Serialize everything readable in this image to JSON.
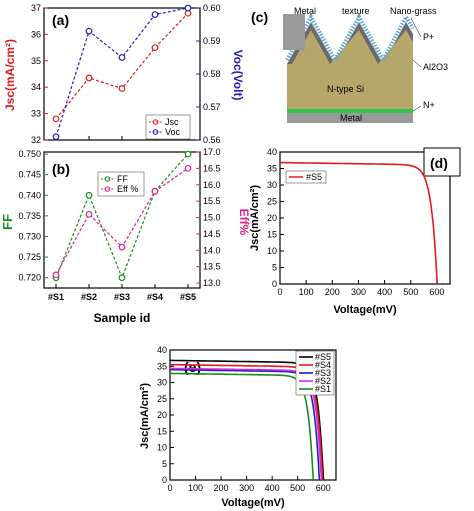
{
  "chart_data": [
    {
      "panel": "(a)",
      "type": "line",
      "categories": [
        "#S1",
        "#S2",
        "#S3",
        "#S4",
        "#S5"
      ],
      "xlabel": "",
      "ylabel": "Jsc(mA/cm²)",
      "y2label": "Voc(Volt)",
      "ylim": [
        32,
        37
      ],
      "y2lim": [
        0.56,
        0.6
      ],
      "yticks": [
        "32",
        "33",
        "34",
        "35",
        "36",
        "37"
      ],
      "y2ticks": [
        "0.56",
        "0.57",
        "0.58",
        "0.59",
        "0.60"
      ],
      "legend": "center-right",
      "series": [
        {
          "name": "Jsc",
          "axis": "left",
          "color": "#e31a1c",
          "values": [
            32.8,
            34.35,
            33.95,
            35.5,
            36.8
          ]
        },
        {
          "name": "Voc",
          "axis": "right",
          "color": "#1f1fbf",
          "values": [
            0.561,
            0.593,
            0.585,
            0.598,
            0.6
          ]
        }
      ]
    },
    {
      "panel": "(b)",
      "type": "line",
      "categories": [
        "#S1",
        "#S2",
        "#S3",
        "#S4",
        "#S5"
      ],
      "xlabel": "Sample id",
      "ylabel": "FF",
      "y2label": "Eff%",
      "ylim": [
        0.7175,
        0.7505
      ],
      "y2lim": [
        12.85,
        17.0
      ],
      "yticks": [
        "0.720",
        "0.725",
        "0.730",
        "0.735",
        "0.740",
        "0.745",
        "0.750"
      ],
      "y2ticks": [
        "13.0",
        "13.5",
        "14.0",
        "14.5",
        "15.0",
        "15.5",
        "16.0",
        "16.5",
        "17.0"
      ],
      "legend": "top-left",
      "series": [
        {
          "name": "FF",
          "axis": "left",
          "color": "#1a8c1a",
          "values": [
            0.72,
            0.74,
            0.72,
            0.741,
            0.75
          ]
        },
        {
          "name": "Eff %",
          "axis": "right",
          "color": "#e0208a",
          "values": [
            13.25,
            15.1,
            14.1,
            15.8,
            16.5
          ]
        }
      ]
    },
    {
      "panel": "(d)",
      "type": "line",
      "xlabel": "Voltage(mV)",
      "ylabel": "Jsc(mA/cm²)",
      "xlim": [
        0,
        650
      ],
      "ylim": [
        0,
        40
      ],
      "xticks": [
        "0",
        "100",
        "200",
        "300",
        "400",
        "500",
        "600"
      ],
      "yticks": [
        "0",
        "5",
        "10",
        "15",
        "20",
        "25",
        "30",
        "35",
        "40"
      ],
      "legend": "top-left",
      "series": [
        {
          "name": "#S5",
          "color": "#e31a1c",
          "Voc": 601,
          "Jsc": 36.8
        }
      ]
    },
    {
      "panel": "(e)",
      "type": "line",
      "xlabel": "Voltage(mV)",
      "ylabel": "Jsc(mA/cm²)",
      "xlim": [
        0,
        650
      ],
      "ylim": [
        0,
        40
      ],
      "xticks": [
        "0",
        "100",
        "200",
        "300",
        "400",
        "500",
        "600"
      ],
      "yticks": [
        "0",
        "5",
        "10",
        "15",
        "20",
        "25",
        "30",
        "35",
        "40"
      ],
      "legend": "top-right",
      "series": [
        {
          "name": "#S5",
          "color": "#000000",
          "Voc": 601,
          "Jsc": 36.8
        },
        {
          "name": "#S4",
          "color": "#e31a1c",
          "Voc": 598,
          "Jsc": 35.5
        },
        {
          "name": "#S3",
          "color": "#1f1fbf",
          "Voc": 585,
          "Jsc": 33.95
        },
        {
          "name": "#S2",
          "color": "#d62fd6",
          "Voc": 593,
          "Jsc": 34.35
        },
        {
          "name": "#S1",
          "color": "#1a8c1a",
          "Voc": 561,
          "Jsc": 32.8
        }
      ]
    }
  ],
  "diagram": {
    "panel": "(c)",
    "labels": {
      "metal_top": "Metal",
      "texture": "texture",
      "nano_grass": "Nano-grass",
      "p_plus": "P+",
      "al2o3": "Al2O3",
      "n_type": "N-type Si",
      "n_plus": "N+",
      "metal_bottom": "Metal"
    },
    "colors": {
      "si": "#b5a76a",
      "p_layer": "#6a6a6a",
      "nano_grass": "#5aa6d6",
      "metal": "#9a9a9a",
      "n_plus": "#2ec74a"
    }
  }
}
